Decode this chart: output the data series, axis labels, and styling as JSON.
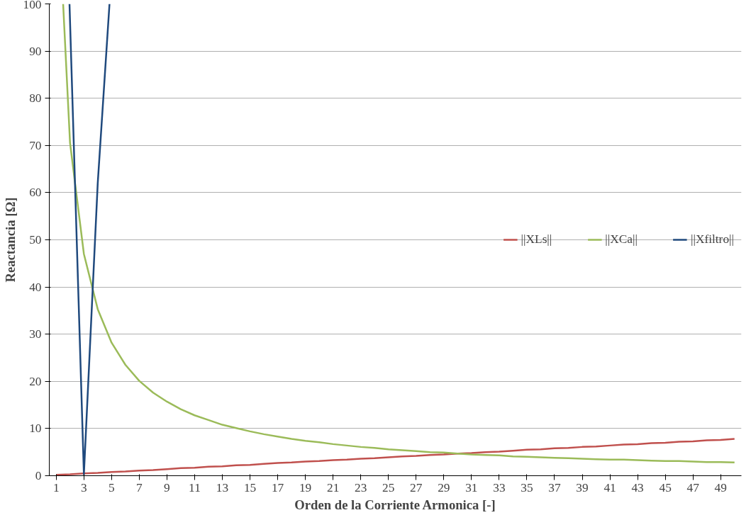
{
  "chart_data": {
    "type": "line",
    "xlabel": "Orden de la Corriente Armonica [-]",
    "ylabel": "Reactancia [Ω]",
    "xlim": [
      0.5,
      50.5
    ],
    "xticks": [
      1,
      3,
      5,
      7,
      9,
      11,
      13,
      15,
      17,
      19,
      21,
      23,
      25,
      27,
      29,
      31,
      33,
      35,
      37,
      39,
      41,
      43,
      45,
      47,
      49
    ],
    "ylim": [
      0,
      100
    ],
    "yticks": [
      0,
      10,
      20,
      30,
      40,
      50,
      60,
      70,
      80,
      90,
      100
    ],
    "grid": "y",
    "legend": "right",
    "marker": "none",
    "line_style": "solid",
    "series": [
      {
        "name": "||XLs||",
        "color": "#c0504d",
        "x": [
          1,
          2,
          3,
          4,
          5,
          6,
          7,
          8,
          9,
          10,
          11,
          12,
          13,
          14,
          15,
          16,
          17,
          18,
          19,
          20,
          21,
          22,
          23,
          24,
          25,
          26,
          27,
          28,
          29,
          30,
          31,
          32,
          33,
          34,
          35,
          36,
          37,
          38,
          39,
          40,
          41,
          42,
          43,
          44,
          45,
          46,
          47,
          48,
          49,
          50
        ],
        "values": [
          0.2,
          0.3,
          0.5,
          0.6,
          0.8,
          0.9,
          1.1,
          1.2,
          1.4,
          1.6,
          1.7,
          1.9,
          2.0,
          2.2,
          2.3,
          2.5,
          2.7,
          2.8,
          3.0,
          3.1,
          3.3,
          3.4,
          3.6,
          3.7,
          3.9,
          4.1,
          4.2,
          4.4,
          4.5,
          4.7,
          4.8,
          5.0,
          5.1,
          5.3,
          5.5,
          5.6,
          5.8,
          5.9,
          6.1,
          6.2,
          6.4,
          6.6,
          6.7,
          6.9,
          7.0,
          7.2,
          7.3,
          7.5,
          7.6,
          7.8
        ]
      },
      {
        "name": "||XCa||",
        "color": "#9bbb59",
        "x": [
          1.5,
          2,
          3,
          4,
          5,
          6,
          7,
          8,
          9,
          10,
          11,
          12,
          13,
          14,
          15,
          16,
          17,
          18,
          19,
          20,
          21,
          22,
          23,
          24,
          25,
          26,
          27,
          28,
          29,
          30,
          31,
          32,
          33,
          34,
          35,
          36,
          37,
          38,
          39,
          40,
          41,
          42,
          43,
          44,
          45,
          46,
          47,
          48,
          49,
          50
        ],
        "values": [
          100,
          70.5,
          47,
          35.3,
          28.2,
          23.5,
          20.1,
          17.6,
          15.7,
          14.1,
          12.8,
          11.8,
          10.8,
          10.1,
          9.4,
          8.8,
          8.3,
          7.8,
          7.4,
          7.1,
          6.7,
          6.4,
          6.1,
          5.9,
          5.6,
          5.4,
          5.2,
          5.0,
          4.9,
          4.7,
          4.5,
          4.4,
          4.3,
          4.1,
          4.0,
          3.9,
          3.8,
          3.7,
          3.6,
          3.5,
          3.4,
          3.4,
          3.3,
          3.2,
          3.1,
          3.1,
          3.0,
          2.9,
          2.9,
          2.8
        ]
      },
      {
        "name": "||Xfiltro||",
        "color": "#1f497d",
        "x": [
          1.96,
          3,
          4,
          4.85
        ],
        "values": [
          100,
          0.3,
          62,
          100
        ]
      }
    ]
  }
}
